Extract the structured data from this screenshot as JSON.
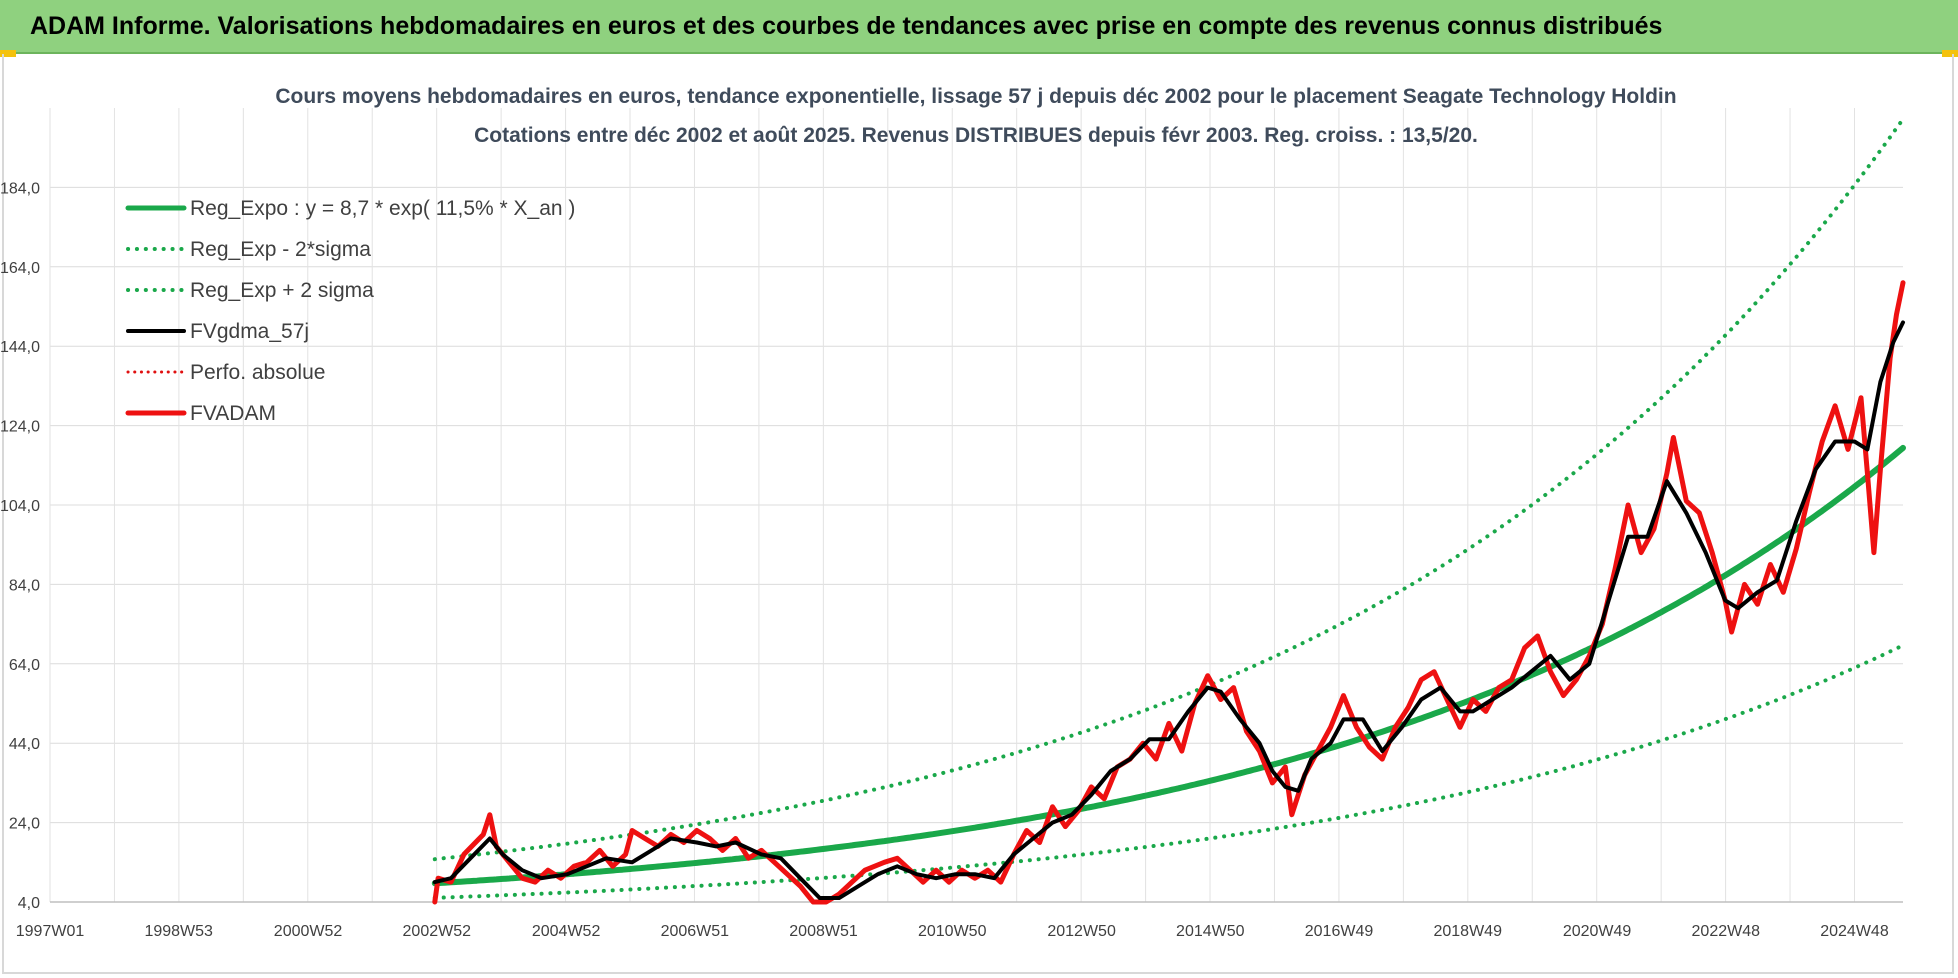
{
  "header": {
    "title": "ADAM Informe. Valorisations hebdomadaires en euros et des courbes de tendances avec prise en compte des revenus connus distribués",
    "background": "#8fd17f"
  },
  "chart_data": {
    "type": "line",
    "title": "Cours moyens hebdomadaires en euros, tendance exponentielle, lissage 57 j depuis déc 2002 pour le placement Seagate Technology Holdin",
    "subtitle": "Cotations entre déc 2002 et août 2025. Revenus DISTRIBUES depuis févr 2003. Reg. croiss. : 13,5/20.",
    "xlabel": "",
    "ylabel": "",
    "x_range": [
      1997.0,
      2025.65
    ],
    "ylim": [
      4,
      204
    ],
    "y_ticks": [
      "4,0",
      "24,0",
      "44,0",
      "64,0",
      "84,0",
      "104,0",
      "124,0",
      "144,0",
      "164,0",
      "184,0"
    ],
    "x_ticks": [
      {
        "label": "1997W01",
        "x": 1997.0
      },
      {
        "label": "1998W53",
        "x": 1998.99
      },
      {
        "label": "2000W52",
        "x": 2000.99
      },
      {
        "label": "2002W52",
        "x": 2002.98
      },
      {
        "label": "2004W52",
        "x": 2004.98
      },
      {
        "label": "2006W51",
        "x": 2006.97
      },
      {
        "label": "2008W51",
        "x": 2008.96
      },
      {
        "label": "2010W50",
        "x": 2010.95
      },
      {
        "label": "2012W50",
        "x": 2012.95
      },
      {
        "label": "2014W50",
        "x": 2014.94
      },
      {
        "label": "2016W49",
        "x": 2016.93
      },
      {
        "label": "2018W49",
        "x": 2018.92
      },
      {
        "label": "2020W49",
        "x": 2020.92
      },
      {
        "label": "2022W48",
        "x": 2022.91
      },
      {
        "label": "2024W48",
        "x": 2024.9
      }
    ],
    "grid": true,
    "legend_position": "top-left",
    "regression": {
      "a": 8.7,
      "rate": 0.115,
      "start_year": 2002.95,
      "end_year": 2025.65,
      "sigma_factor_high": 1.7,
      "sigma_factor_low": 0.58,
      "y_cap": 204
    },
    "series": [
      {
        "name": "Reg_Expo : y = 8,7 * exp( 11,5% *  X_an )",
        "color": "#1aa84a",
        "style": "solid",
        "width": 6
      },
      {
        "name": "Reg_Exp - 2*sigma",
        "color": "#1aa84a",
        "style": "dotted",
        "width": 4
      },
      {
        "name": "Reg_Exp + 2 sigma",
        "color": "#1aa84a",
        "style": "dotted",
        "width": 4
      },
      {
        "name": "FVgdma_57j",
        "color": "#000000",
        "style": "solid",
        "width": 4,
        "points": [
          [
            2002.95,
            9
          ],
          [
            2003.2,
            10
          ],
          [
            2003.5,
            15
          ],
          [
            2003.8,
            20
          ],
          [
            2004.0,
            16
          ],
          [
            2004.3,
            12
          ],
          [
            2004.6,
            10
          ],
          [
            2005.0,
            11
          ],
          [
            2005.3,
            13
          ],
          [
            2005.6,
            15
          ],
          [
            2006.0,
            14
          ],
          [
            2006.3,
            17
          ],
          [
            2006.6,
            20
          ],
          [
            2007.0,
            19
          ],
          [
            2007.3,
            18
          ],
          [
            2007.6,
            19
          ],
          [
            2008.0,
            16
          ],
          [
            2008.3,
            15
          ],
          [
            2008.6,
            10
          ],
          [
            2008.9,
            5
          ],
          [
            2009.2,
            5
          ],
          [
            2009.5,
            8
          ],
          [
            2009.8,
            11
          ],
          [
            2010.1,
            13
          ],
          [
            2010.4,
            11
          ],
          [
            2010.7,
            10
          ],
          [
            2011.0,
            11
          ],
          [
            2011.3,
            11
          ],
          [
            2011.6,
            10
          ],
          [
            2011.9,
            16
          ],
          [
            2012.2,
            20
          ],
          [
            2012.5,
            24
          ],
          [
            2012.8,
            26
          ],
          [
            2013.1,
            31
          ],
          [
            2013.4,
            37
          ],
          [
            2013.7,
            40
          ],
          [
            2014.0,
            45
          ],
          [
            2014.3,
            45
          ],
          [
            2014.6,
            52
          ],
          [
            2014.9,
            58
          ],
          [
            2015.1,
            57
          ],
          [
            2015.4,
            50
          ],
          [
            2015.7,
            44
          ],
          [
            2015.9,
            37
          ],
          [
            2016.1,
            33
          ],
          [
            2016.3,
            32
          ],
          [
            2016.5,
            40
          ],
          [
            2016.8,
            44
          ],
          [
            2017.0,
            50
          ],
          [
            2017.3,
            50
          ],
          [
            2017.6,
            42
          ],
          [
            2017.9,
            48
          ],
          [
            2018.2,
            55
          ],
          [
            2018.5,
            58
          ],
          [
            2018.8,
            52
          ],
          [
            2019.0,
            52
          ],
          [
            2019.3,
            55
          ],
          [
            2019.6,
            58
          ],
          [
            2019.9,
            62
          ],
          [
            2020.2,
            66
          ],
          [
            2020.5,
            60
          ],
          [
            2020.8,
            64
          ],
          [
            2021.1,
            80
          ],
          [
            2021.4,
            96
          ],
          [
            2021.7,
            96
          ],
          [
            2022.0,
            110
          ],
          [
            2022.3,
            102
          ],
          [
            2022.6,
            92
          ],
          [
            2022.9,
            80
          ],
          [
            2023.1,
            78
          ],
          [
            2023.4,
            82
          ],
          [
            2023.7,
            85
          ],
          [
            2024.0,
            100
          ],
          [
            2024.3,
            113
          ],
          [
            2024.6,
            120
          ],
          [
            2024.9,
            120
          ],
          [
            2025.1,
            118
          ],
          [
            2025.3,
            135
          ],
          [
            2025.5,
            145
          ],
          [
            2025.65,
            150
          ]
        ]
      },
      {
        "name": "Perfo. absolue",
        "color": "#e01010",
        "style": "dotted",
        "width": 3
      },
      {
        "name": "FVADAM",
        "color": "#ee1111",
        "style": "solid",
        "width": 5,
        "points": [
          [
            2002.95,
            4
          ],
          [
            2003.0,
            10
          ],
          [
            2003.2,
            9
          ],
          [
            2003.4,
            16
          ],
          [
            2003.7,
            21
          ],
          [
            2003.8,
            26
          ],
          [
            2003.9,
            18
          ],
          [
            2004.1,
            14
          ],
          [
            2004.3,
            10
          ],
          [
            2004.5,
            9
          ],
          [
            2004.7,
            12
          ],
          [
            2004.9,
            10
          ],
          [
            2005.1,
            13
          ],
          [
            2005.3,
            14
          ],
          [
            2005.5,
            17
          ],
          [
            2005.7,
            13
          ],
          [
            2005.9,
            16
          ],
          [
            2006.0,
            22
          ],
          [
            2006.2,
            20
          ],
          [
            2006.4,
            18
          ],
          [
            2006.6,
            21
          ],
          [
            2006.8,
            19
          ],
          [
            2007.0,
            22
          ],
          [
            2007.2,
            20
          ],
          [
            2007.4,
            17
          ],
          [
            2007.6,
            20
          ],
          [
            2007.8,
            15
          ],
          [
            2008.0,
            17
          ],
          [
            2008.2,
            14
          ],
          [
            2008.4,
            11
          ],
          [
            2008.6,
            8
          ],
          [
            2008.8,
            4
          ],
          [
            2009.0,
            4
          ],
          [
            2009.2,
            6
          ],
          [
            2009.4,
            9
          ],
          [
            2009.6,
            12
          ],
          [
            2009.9,
            14
          ],
          [
            2010.1,
            15
          ],
          [
            2010.3,
            12
          ],
          [
            2010.5,
            9
          ],
          [
            2010.7,
            12
          ],
          [
            2010.9,
            9
          ],
          [
            2011.1,
            12
          ],
          [
            2011.3,
            10
          ],
          [
            2011.5,
            12
          ],
          [
            2011.7,
            9
          ],
          [
            2011.9,
            16
          ],
          [
            2012.1,
            22
          ],
          [
            2012.3,
            19
          ],
          [
            2012.5,
            28
          ],
          [
            2012.7,
            23
          ],
          [
            2012.9,
            27
          ],
          [
            2013.1,
            33
          ],
          [
            2013.3,
            30
          ],
          [
            2013.5,
            38
          ],
          [
            2013.7,
            40
          ],
          [
            2013.9,
            44
          ],
          [
            2014.1,
            40
          ],
          [
            2014.3,
            49
          ],
          [
            2014.5,
            42
          ],
          [
            2014.7,
            54
          ],
          [
            2014.9,
            61
          ],
          [
            2015.1,
            55
          ],
          [
            2015.3,
            58
          ],
          [
            2015.5,
            47
          ],
          [
            2015.7,
            42
          ],
          [
            2015.9,
            34
          ],
          [
            2016.1,
            38
          ],
          [
            2016.2,
            26
          ],
          [
            2016.4,
            36
          ],
          [
            2016.6,
            42
          ],
          [
            2016.8,
            48
          ],
          [
            2017.0,
            56
          ],
          [
            2017.2,
            48
          ],
          [
            2017.4,
            43
          ],
          [
            2017.6,
            40
          ],
          [
            2017.8,
            48
          ],
          [
            2018.0,
            53
          ],
          [
            2018.2,
            60
          ],
          [
            2018.4,
            62
          ],
          [
            2018.6,
            55
          ],
          [
            2018.8,
            48
          ],
          [
            2019.0,
            55
          ],
          [
            2019.2,
            52
          ],
          [
            2019.4,
            58
          ],
          [
            2019.6,
            60
          ],
          [
            2019.8,
            68
          ],
          [
            2020.0,
            71
          ],
          [
            2020.2,
            62
          ],
          [
            2020.4,
            56
          ],
          [
            2020.6,
            60
          ],
          [
            2020.8,
            66
          ],
          [
            2021.0,
            74
          ],
          [
            2021.2,
            88
          ],
          [
            2021.4,
            104
          ],
          [
            2021.6,
            92
          ],
          [
            2021.8,
            98
          ],
          [
            2022.0,
            112
          ],
          [
            2022.1,
            121
          ],
          [
            2022.3,
            105
          ],
          [
            2022.5,
            102
          ],
          [
            2022.7,
            92
          ],
          [
            2022.9,
            80
          ],
          [
            2023.0,
            72
          ],
          [
            2023.2,
            84
          ],
          [
            2023.4,
            79
          ],
          [
            2023.6,
            89
          ],
          [
            2023.8,
            82
          ],
          [
            2024.0,
            93
          ],
          [
            2024.2,
            107
          ],
          [
            2024.4,
            120
          ],
          [
            2024.6,
            129
          ],
          [
            2024.8,
            118
          ],
          [
            2025.0,
            131
          ],
          [
            2025.1,
            112
          ],
          [
            2025.2,
            92
          ],
          [
            2025.3,
            113
          ],
          [
            2025.45,
            141
          ],
          [
            2025.55,
            152
          ],
          [
            2025.65,
            160
          ]
        ]
      }
    ]
  }
}
